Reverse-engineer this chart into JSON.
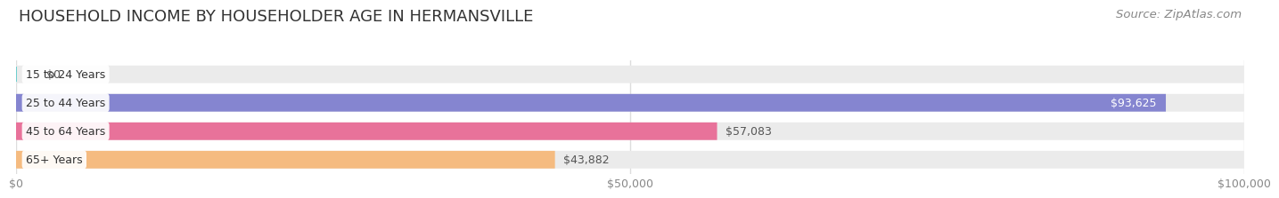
{
  "title": "HOUSEHOLD INCOME BY HOUSEHOLDER AGE IN HERMANSVILLE",
  "source": "Source: ZipAtlas.com",
  "categories": [
    "15 to 24 Years",
    "25 to 44 Years",
    "45 to 64 Years",
    "65+ Years"
  ],
  "values": [
    0,
    93625,
    57083,
    43882
  ],
  "max_value": 100000,
  "bar_colors": [
    "#6ecece",
    "#8585d0",
    "#e8729a",
    "#f5bb80"
  ],
  "bg_color": "#ffffff",
  "bar_bg_color": "#ebebeb",
  "label_values": [
    "$0",
    "$93,625",
    "$57,083",
    "$43,882"
  ],
  "label_inside": [
    false,
    true,
    false,
    false
  ],
  "x_ticks": [
    0,
    50000,
    100000
  ],
  "x_tick_labels": [
    "$0",
    "$50,000",
    "$100,000"
  ],
  "title_fontsize": 13,
  "source_fontsize": 9.5,
  "label_fontsize": 9,
  "tick_fontsize": 9,
  "category_fontsize": 9
}
